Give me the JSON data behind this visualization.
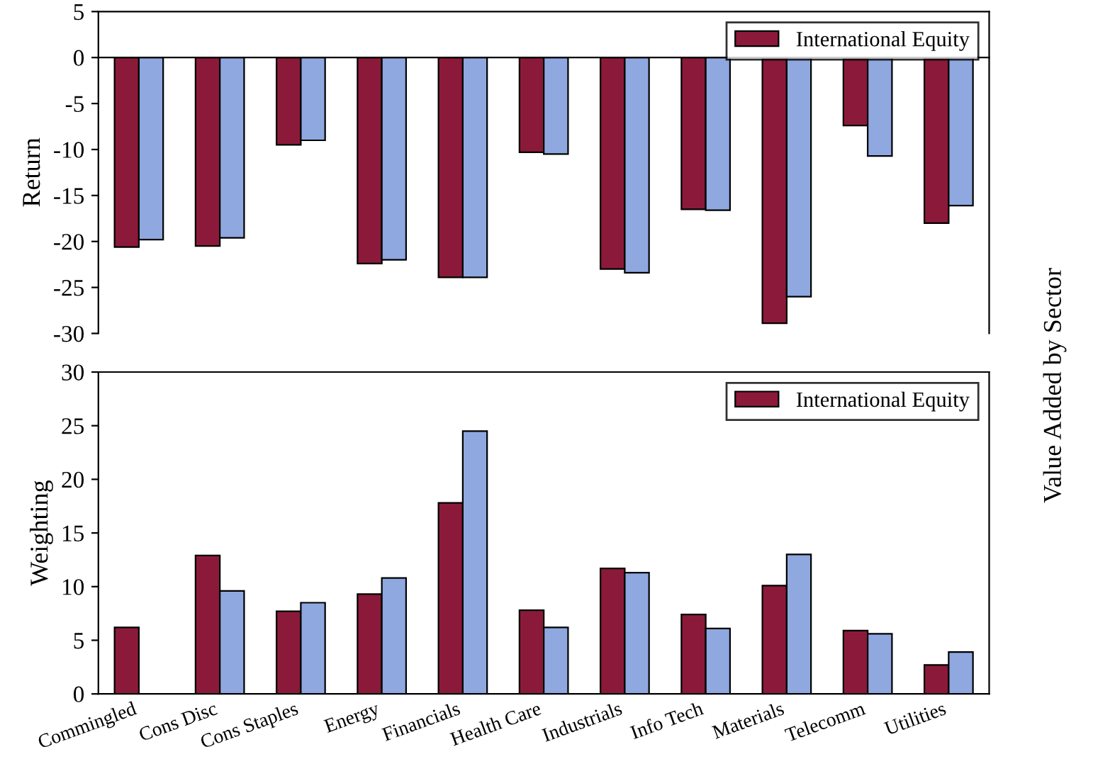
{
  "chart_data": [
    {
      "type": "bar",
      "ylabel": "Return",
      "categories": [
        null,
        null,
        null,
        null,
        null,
        null,
        null,
        null,
        null,
        null,
        null
      ],
      "tick_labels": "y",
      "ylim": [
        -30,
        5
      ],
      "yticks": [
        -30,
        -25,
        -20,
        -15,
        -10,
        -5,
        0,
        5
      ],
      "legend": "top right",
      "series": [
        {
          "name": "International Equity",
          "color": "#8b1a3a",
          "values": [
            -20.6,
            -20.5,
            -9.5,
            -22.4,
            -23.9,
            -10.3,
            -23.0,
            -16.5,
            -28.9,
            -7.4,
            -18.0
          ]
        },
        {
          "color": "#8fa8e0",
          "values": [
            -19.8,
            -19.6,
            -9.0,
            -22.0,
            -23.9,
            -10.5,
            -23.4,
            -16.6,
            -26.0,
            -10.7,
            -16.1
          ]
        }
      ]
    },
    {
      "type": "bar",
      "ylabel": "Weighting",
      "categories": [
        "Commingled",
        "Cons Disc",
        "Cons Staples",
        "Energy",
        "Financials",
        "Health Care",
        "Industrials",
        "Info Tech",
        "Materials",
        "Telecomm",
        "Utilities"
      ],
      "ylim": [
        0,
        30
      ],
      "yticks": [
        0,
        5,
        10,
        15,
        20,
        25,
        30
      ],
      "legend": "top right",
      "annotations": [
        "Value Added by Sector"
      ],
      "series": [
        {
          "name": "International Equity",
          "color": "#8b1a3a",
          "values": [
            6.2,
            12.9,
            7.7,
            9.3,
            17.8,
            7.8,
            11.7,
            7.4,
            10.1,
            5.9,
            2.7
          ]
        },
        {
          "color": "#8fa8e0",
          "values": [
            null,
            9.6,
            8.5,
            10.8,
            24.5,
            6.2,
            11.3,
            6.1,
            13.0,
            5.6,
            3.9
          ]
        }
      ]
    }
  ]
}
